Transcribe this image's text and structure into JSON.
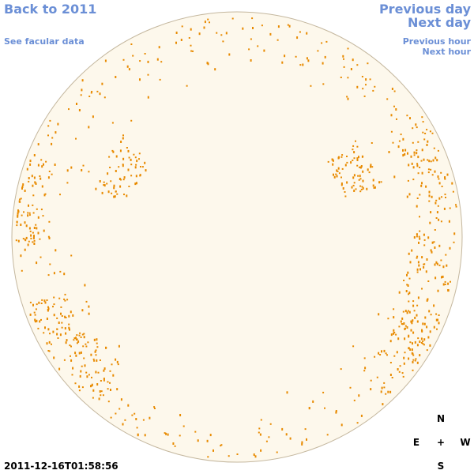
{
  "nav": {
    "back": "Back to 2011",
    "facular": "See facular data",
    "previous_day": "Previous day",
    "next_day": "Next day",
    "previous_hour": "Previous hour",
    "next_hour": "Next hour"
  },
  "timestamp": "2011-12-16T01:58:56",
  "compass": {
    "north": "N",
    "east": "E",
    "center": "+",
    "west": "W",
    "south": "S"
  }
}
